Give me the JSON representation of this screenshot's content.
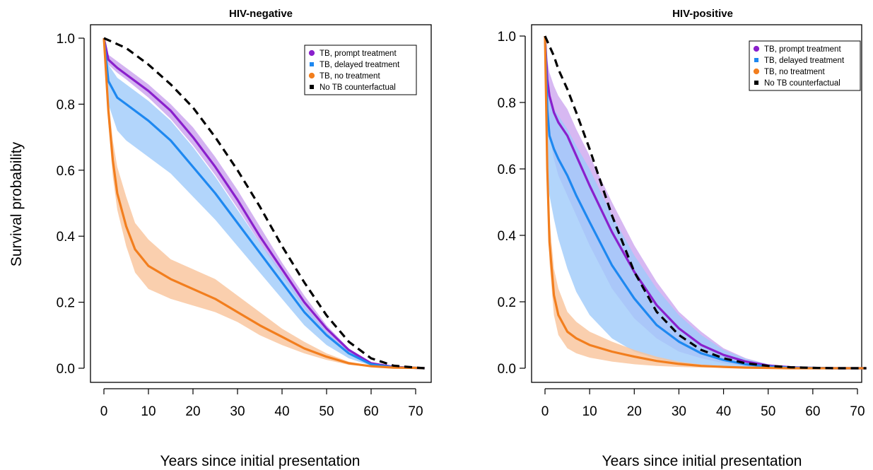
{
  "colors": {
    "prompt": "#8a20cc",
    "prompt_band": "#c9a0ee",
    "delayed": "#1e88f0",
    "delayed_band": "#9fcbfa",
    "none": "#f27e1e",
    "none_band": "#f9c39a",
    "counterfactual": "#000000"
  },
  "legend_items": [
    {
      "label": "TB, prompt treatment",
      "key": "prompt",
      "marker": "circle"
    },
    {
      "label": "TB, delayed treatment",
      "key": "delayed",
      "marker": "square"
    },
    {
      "label": "TB, no treatment",
      "key": "none",
      "marker": "circle"
    },
    {
      "label": "No TB counterfactual",
      "key": "counterfactual",
      "marker": "square"
    }
  ],
  "chart_data": [
    {
      "type": "line",
      "title": "HIV-negative",
      "xlabel": "Years since initial presentation",
      "ylabel": "Survival probability",
      "xlim": [
        0,
        72
      ],
      "ylim": [
        0,
        1
      ],
      "xticks": [
        0,
        10,
        20,
        30,
        40,
        50,
        60,
        70
      ],
      "yticks": [
        0.0,
        0.2,
        0.4,
        0.6,
        0.8,
        1.0
      ],
      "ytick_labels": [
        "0.0",
        "0.2",
        "0.4",
        "0.6",
        "0.8",
        "1.0"
      ],
      "legend_position": "top-right",
      "series": [
        {
          "name": "TB, prompt treatment",
          "key": "prompt",
          "dashed": false,
          "x": [
            0,
            1,
            3,
            5,
            10,
            15,
            20,
            25,
            30,
            35,
            40,
            45,
            50,
            55,
            60,
            65,
            70,
            72
          ],
          "y": [
            1.0,
            0.935,
            0.91,
            0.89,
            0.84,
            0.78,
            0.7,
            0.61,
            0.51,
            0.4,
            0.3,
            0.2,
            0.12,
            0.055,
            0.015,
            0.004,
            0.001,
            0.0
          ],
          "lower": [
            1.0,
            0.92,
            0.895,
            0.875,
            0.82,
            0.755,
            0.675,
            0.585,
            0.485,
            0.38,
            0.28,
            0.18,
            0.1,
            0.045,
            0.012,
            0.003,
            0.001,
            0.0
          ],
          "upper": [
            1.0,
            0.95,
            0.93,
            0.91,
            0.86,
            0.8,
            0.73,
            0.64,
            0.54,
            0.43,
            0.32,
            0.22,
            0.13,
            0.06,
            0.018,
            0.005,
            0.002,
            0.0
          ]
        },
        {
          "name": "TB, delayed treatment",
          "key": "delayed",
          "dashed": false,
          "x": [
            0,
            1,
            3,
            5,
            10,
            15,
            20,
            25,
            30,
            35,
            40,
            45,
            50,
            55,
            60,
            65,
            70,
            72
          ],
          "y": [
            1.0,
            0.87,
            0.82,
            0.8,
            0.75,
            0.69,
            0.61,
            0.53,
            0.44,
            0.35,
            0.26,
            0.17,
            0.1,
            0.045,
            0.012,
            0.003,
            0.001,
            0.0
          ],
          "lower": [
            1.0,
            0.8,
            0.72,
            0.69,
            0.64,
            0.59,
            0.52,
            0.45,
            0.37,
            0.29,
            0.21,
            0.13,
            0.07,
            0.03,
            0.008,
            0.002,
            0.0,
            0.0
          ],
          "upper": [
            1.0,
            0.92,
            0.88,
            0.86,
            0.81,
            0.75,
            0.67,
            0.58,
            0.48,
            0.38,
            0.29,
            0.19,
            0.11,
            0.05,
            0.015,
            0.004,
            0.001,
            0.0
          ]
        },
        {
          "name": "TB, no treatment",
          "key": "none",
          "dashed": false,
          "x": [
            0,
            1,
            2,
            3,
            5,
            7,
            10,
            15,
            20,
            25,
            30,
            35,
            40,
            45,
            50,
            55,
            60,
            65,
            70,
            72
          ],
          "y": [
            1.0,
            0.78,
            0.63,
            0.53,
            0.43,
            0.36,
            0.31,
            0.27,
            0.24,
            0.21,
            0.17,
            0.13,
            0.095,
            0.06,
            0.035,
            0.015,
            0.006,
            0.002,
            0.001,
            0.0
          ],
          "lower": [
            1.0,
            0.74,
            0.58,
            0.48,
            0.37,
            0.29,
            0.24,
            0.21,
            0.19,
            0.17,
            0.14,
            0.1,
            0.07,
            0.045,
            0.025,
            0.01,
            0.004,
            0.001,
            0.0,
            0.0
          ],
          "upper": [
            1.0,
            0.82,
            0.69,
            0.61,
            0.52,
            0.44,
            0.39,
            0.33,
            0.3,
            0.27,
            0.22,
            0.17,
            0.12,
            0.08,
            0.045,
            0.02,
            0.008,
            0.003,
            0.001,
            0.0
          ]
        },
        {
          "name": "No TB counterfactual",
          "key": "counterfactual",
          "dashed": true,
          "x": [
            0,
            5,
            10,
            15,
            20,
            25,
            30,
            35,
            40,
            45,
            50,
            55,
            60,
            65,
            70,
            72
          ],
          "y": [
            1.0,
            0.97,
            0.92,
            0.86,
            0.79,
            0.7,
            0.6,
            0.49,
            0.37,
            0.26,
            0.16,
            0.08,
            0.03,
            0.008,
            0.002,
            0.0
          ]
        }
      ]
    },
    {
      "type": "line",
      "title": "HIV-positive",
      "xlabel": "Years since initial presentation",
      "ylabel": "",
      "xlim": [
        0,
        72
      ],
      "ylim": [
        0,
        1
      ],
      "xticks": [
        0,
        10,
        20,
        30,
        40,
        50,
        60,
        70
      ],
      "yticks": [
        0.0,
        0.2,
        0.4,
        0.6,
        0.8,
        1.0
      ],
      "ytick_labels": [
        "0.0",
        "0.2",
        "0.4",
        "0.6",
        "0.8",
        "1.0"
      ],
      "legend_position": "top-right",
      "series": [
        {
          "name": "TB, prompt treatment",
          "key": "prompt",
          "dashed": false,
          "x": [
            0,
            0.5,
            1,
            2,
            3,
            5,
            7,
            10,
            15,
            20,
            25,
            30,
            35,
            40,
            45,
            50,
            55,
            60,
            65,
            70,
            72
          ],
          "y": [
            1.0,
            0.87,
            0.82,
            0.77,
            0.74,
            0.7,
            0.64,
            0.55,
            0.41,
            0.29,
            0.19,
            0.12,
            0.07,
            0.04,
            0.02,
            0.008,
            0.003,
            0.001,
            0.0,
            0.0,
            0.0
          ],
          "lower": [
            1.0,
            0.78,
            0.7,
            0.63,
            0.58,
            0.52,
            0.46,
            0.37,
            0.24,
            0.15,
            0.09,
            0.05,
            0.03,
            0.015,
            0.007,
            0.003,
            0.001,
            0.0,
            0.0,
            0.0,
            0.0
          ],
          "upper": [
            1.0,
            0.93,
            0.89,
            0.85,
            0.82,
            0.78,
            0.72,
            0.64,
            0.5,
            0.37,
            0.26,
            0.17,
            0.11,
            0.06,
            0.03,
            0.012,
            0.004,
            0.001,
            0.0,
            0.0,
            0.0
          ]
        },
        {
          "name": "TB, delayed treatment",
          "key": "delayed",
          "dashed": false,
          "x": [
            0,
            0.5,
            1,
            2,
            3,
            5,
            7,
            10,
            15,
            20,
            25,
            30,
            35,
            40,
            45,
            50,
            55,
            60,
            65,
            70,
            72
          ],
          "y": [
            1.0,
            0.78,
            0.7,
            0.66,
            0.63,
            0.58,
            0.52,
            0.44,
            0.31,
            0.21,
            0.13,
            0.08,
            0.045,
            0.025,
            0.012,
            0.005,
            0.002,
            0.001,
            0.0,
            0.0,
            0.0
          ],
          "lower": [
            1.0,
            0.6,
            0.52,
            0.45,
            0.39,
            0.3,
            0.23,
            0.16,
            0.09,
            0.05,
            0.028,
            0.015,
            0.008,
            0.004,
            0.002,
            0.001,
            0.0,
            0.0,
            0.0,
            0.0,
            0.0
          ],
          "upper": [
            1.0,
            0.88,
            0.82,
            0.78,
            0.76,
            0.72,
            0.67,
            0.6,
            0.46,
            0.34,
            0.24,
            0.16,
            0.1,
            0.055,
            0.028,
            0.012,
            0.004,
            0.001,
            0.0,
            0.0,
            0.0
          ]
        },
        {
          "name": "TB, no treatment",
          "key": "none",
          "dashed": false,
          "x": [
            0,
            0.5,
            1,
            2,
            3,
            5,
            7,
            10,
            15,
            20,
            25,
            30,
            35,
            40,
            45,
            50,
            55,
            60,
            65,
            70,
            72
          ],
          "y": [
            1.0,
            0.6,
            0.38,
            0.22,
            0.16,
            0.11,
            0.09,
            0.07,
            0.05,
            0.035,
            0.022,
            0.013,
            0.007,
            0.004,
            0.002,
            0.001,
            0.0,
            0.0,
            0.0,
            0.0,
            0.0
          ],
          "lower": [
            1.0,
            0.55,
            0.32,
            0.16,
            0.1,
            0.06,
            0.045,
            0.032,
            0.02,
            0.012,
            0.007,
            0.004,
            0.002,
            0.001,
            0.0,
            0.0,
            0.0,
            0.0,
            0.0,
            0.0,
            0.0
          ],
          "upper": [
            1.0,
            0.66,
            0.45,
            0.3,
            0.24,
            0.17,
            0.14,
            0.11,
            0.08,
            0.055,
            0.035,
            0.02,
            0.011,
            0.006,
            0.003,
            0.001,
            0.0,
            0.0,
            0.0,
            0.0,
            0.0
          ]
        },
        {
          "name": "No TB counterfactual",
          "key": "counterfactual",
          "dashed": true,
          "x": [
            0,
            1,
            2,
            3,
            5,
            7,
            10,
            15,
            20,
            25,
            30,
            35,
            40,
            45,
            50,
            55,
            60,
            65,
            70,
            72
          ],
          "y": [
            1.0,
            0.97,
            0.94,
            0.9,
            0.84,
            0.77,
            0.66,
            0.46,
            0.29,
            0.17,
            0.1,
            0.055,
            0.03,
            0.015,
            0.007,
            0.003,
            0.001,
            0.0,
            0.0,
            0.0
          ]
        }
      ]
    }
  ]
}
